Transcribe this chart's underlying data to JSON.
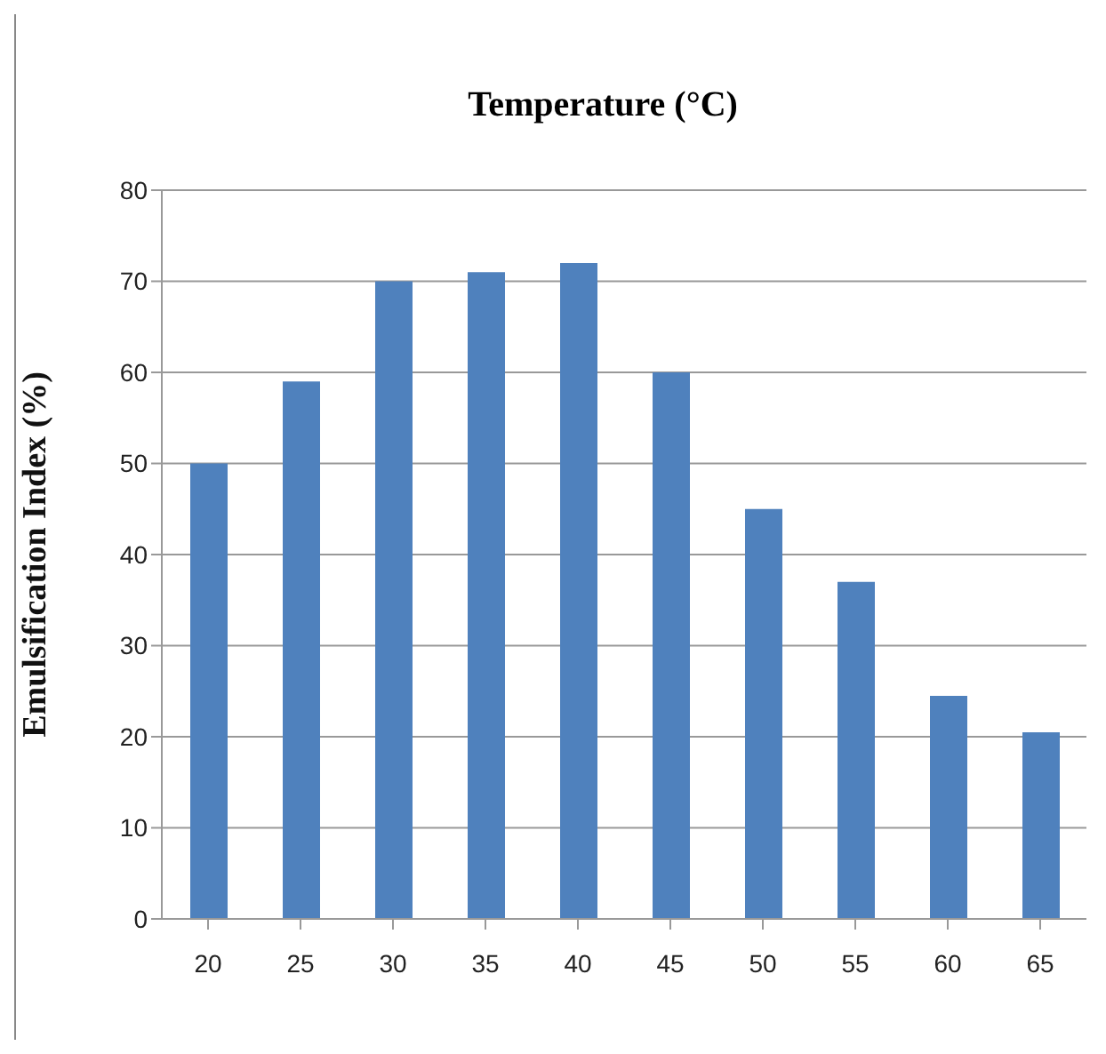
{
  "chart_data": {
    "type": "bar",
    "title": "Temperature (°C)",
    "ylabel": "Emulsification Index (%)",
    "categories": [
      "20",
      "25",
      "30",
      "35",
      "40",
      "45",
      "50",
      "55",
      "60",
      "65"
    ],
    "values": [
      50,
      59,
      70,
      71,
      72,
      60,
      45,
      37,
      24.5,
      20.5
    ],
    "color": "#4f81bd",
    "ylim": [
      0,
      80
    ],
    "yticks": [
      0,
      10,
      20,
      30,
      40,
      50,
      60,
      70,
      80
    ],
    "grid": "y"
  }
}
